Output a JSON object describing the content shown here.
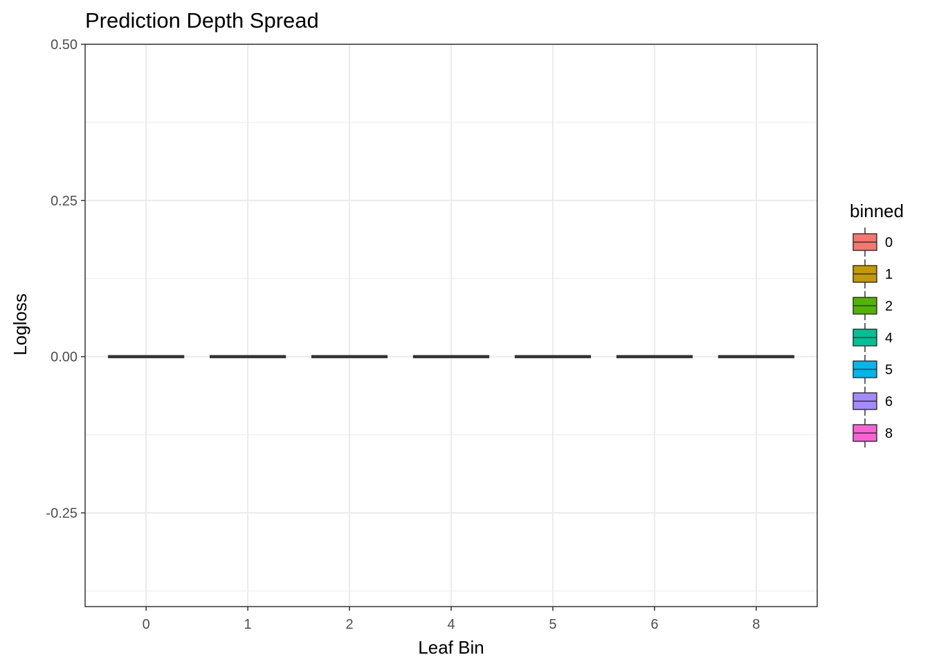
{
  "chart_data": {
    "type": "boxplot",
    "title": "Prediction Depth Spread",
    "xlabel": "Leaf Bin",
    "ylabel": "Logloss",
    "categories": [
      "0",
      "1",
      "2",
      "4",
      "5",
      "6",
      "8"
    ],
    "ylim": [
      -0.4,
      0.5
    ],
    "yticks": [
      -0.25,
      0.0,
      0.25,
      0.5
    ],
    "ytick_labels": [
      "-0.25",
      "0.00",
      "0.25",
      "0.50"
    ],
    "grid": true,
    "series": [
      {
        "category": "0",
        "min": 0,
        "q1": 0,
        "median": 0,
        "q3": 0,
        "max": 0
      },
      {
        "category": "1",
        "min": 0,
        "q1": 0,
        "median": 0,
        "q3": 0,
        "max": 0
      },
      {
        "category": "2",
        "min": 0,
        "q1": 0,
        "median": 0,
        "q3": 0,
        "max": 0
      },
      {
        "category": "4",
        "min": 0,
        "q1": 0,
        "median": 0,
        "q3": 0,
        "max": 0
      },
      {
        "category": "5",
        "min": 0,
        "q1": 0,
        "median": 0,
        "q3": 0,
        "max": 0
      },
      {
        "category": "6",
        "min": 0,
        "q1": 0,
        "median": 0,
        "q3": 0,
        "max": 0
      },
      {
        "category": "8",
        "min": 0,
        "q1": 0,
        "median": 0,
        "q3": 0,
        "max": 0
      }
    ],
    "legend": {
      "title": "binned",
      "position": "right",
      "entries": [
        {
          "label": "0",
          "color": "#F8766D"
        },
        {
          "label": "1",
          "color": "#C49A00"
        },
        {
          "label": "2",
          "color": "#53B400"
        },
        {
          "label": "4",
          "color": "#00C094"
        },
        {
          "label": "5",
          "color": "#00B6EB"
        },
        {
          "label": "6",
          "color": "#A58AFF"
        },
        {
          "label": "8",
          "color": "#FB61D7"
        }
      ]
    }
  }
}
